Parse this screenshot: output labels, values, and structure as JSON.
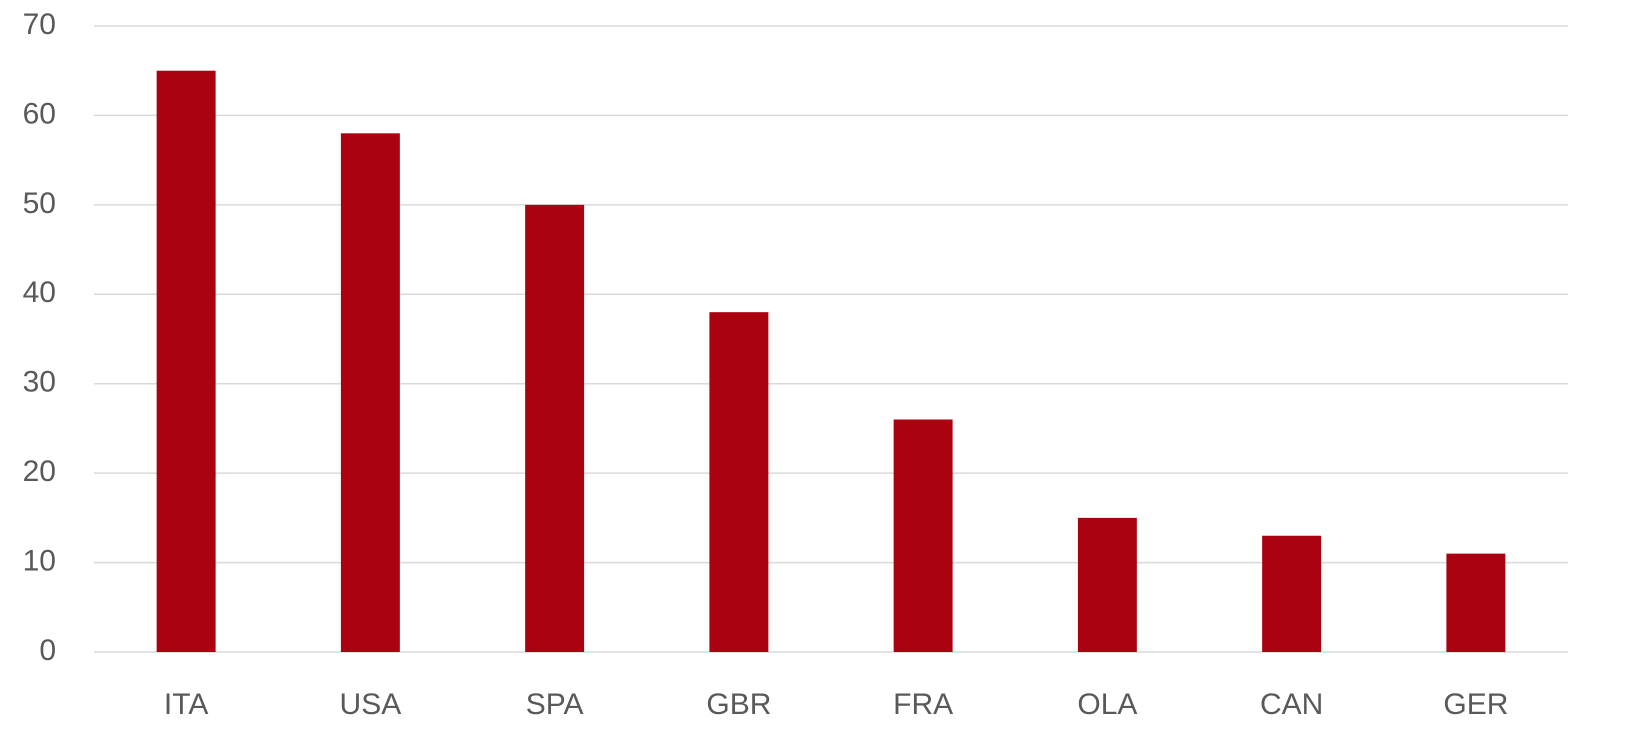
{
  "chart_data": {
    "type": "bar",
    "categories": [
      "ITA",
      "USA",
      "SPA",
      "GBR",
      "FRA",
      "OLA",
      "CAN",
      "GER"
    ],
    "values": [
      65,
      58,
      50,
      38,
      26,
      15,
      13,
      11
    ],
    "color": "#ab0212",
    "ylim": [
      0,
      70
    ],
    "yticks": [
      0,
      10,
      20,
      30,
      40,
      50,
      60,
      70
    ],
    "grid": true
  }
}
